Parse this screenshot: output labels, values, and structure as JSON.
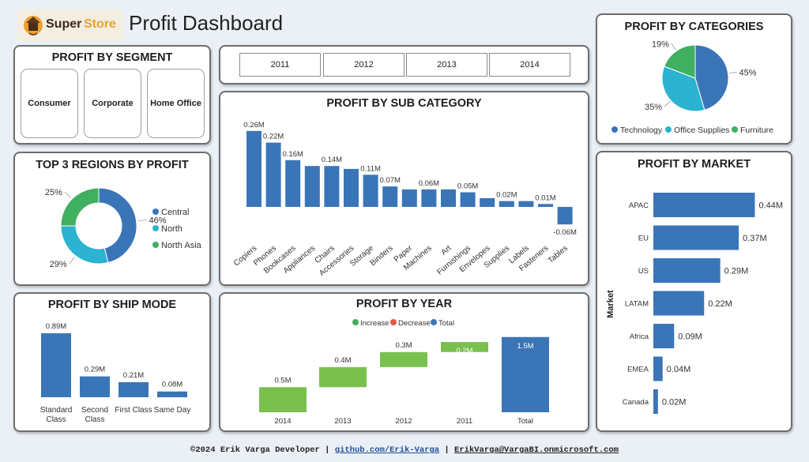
{
  "header": {
    "logo_word1": "Super",
    "logo_word2": "Store",
    "title": "Profit Dashboard"
  },
  "colors": {
    "blue": "#3a75b8",
    "teal": "#2bb3d1",
    "green": "#3faf60",
    "bar_green": "#7ac04e",
    "decrease": "#e8553c",
    "logo_orange": "#f0a030"
  },
  "segment": {
    "title": "PROFIT BY SEGMENT",
    "buttons": [
      "Consumer",
      "Corporate",
      "Home Office"
    ]
  },
  "years": {
    "buttons": [
      "2011",
      "2012",
      "2013",
      "2014"
    ]
  },
  "regions": {
    "title": "TOP 3 REGIONS BY PROFIT",
    "chart_data": {
      "type": "pie",
      "variant": "donut",
      "labels": [
        "Central",
        "North",
        "North Asia"
      ],
      "values": [
        46,
        29,
        25
      ],
      "value_labels": [
        "46%",
        "29%",
        "25%"
      ],
      "legend_placement": "right"
    }
  },
  "categories": {
    "title": "PROFIT BY CATEGORIES",
    "chart_data": {
      "type": "pie",
      "labels": [
        "Technology",
        "Office Supplies",
        "Furniture"
      ],
      "values": [
        45,
        35,
        19
      ],
      "value_labels": [
        "45%",
        "35%",
        "19%"
      ],
      "legend_placement": "bottom"
    }
  },
  "subcategory": {
    "title": "PROFIT BY SUB CATEGORY",
    "chart_data": {
      "type": "bar",
      "categories": [
        "Copiers",
        "Phones",
        "Bookcases",
        "Appliances",
        "Chairs",
        "Accessories",
        "Storage",
        "Binders",
        "Paper",
        "Machines",
        "Art",
        "Furnishings",
        "Envelopes",
        "Supplies",
        "Labels",
        "Fasteners",
        "Tables"
      ],
      "values": [
        0.26,
        0.22,
        0.16,
        0.14,
        0.14,
        0.13,
        0.11,
        0.07,
        0.06,
        0.06,
        0.06,
        0.05,
        0.03,
        0.02,
        0.02,
        0.01,
        -0.06
      ],
      "data_labels": [
        "0.26M",
        "0.22M",
        "0.16M",
        "",
        "0.14M",
        "",
        "0.11M",
        "0.07M",
        "",
        "0.06M",
        "",
        "0.05M",
        "",
        "0.02M",
        "",
        "0.01M",
        "-0.06M"
      ],
      "unit": "M"
    }
  },
  "market": {
    "title": "PROFIT BY MARKET",
    "chart_data": {
      "type": "bar",
      "orientation": "horizontal",
      "categories": [
        "APAC",
        "EU",
        "US",
        "LATAM",
        "Africa",
        "EMEA",
        "Canada"
      ],
      "values": [
        0.44,
        0.37,
        0.29,
        0.22,
        0.09,
        0.04,
        0.02
      ],
      "data_labels": [
        "0.44M",
        "0.37M",
        "0.29M",
        "0.22M",
        "0.09M",
        "0.04M",
        "0.02M"
      ],
      "ylabel": "Market"
    }
  },
  "shipmode": {
    "title": "PROFIT BY SHIP MODE",
    "chart_data": {
      "type": "bar",
      "categories": [
        [
          "Standard",
          "Class"
        ],
        [
          "Second",
          "Class"
        ],
        [
          "First Class"
        ],
        [
          "Same Day"
        ]
      ],
      "values": [
        0.89,
        0.29,
        0.21,
        0.08
      ],
      "data_labels": [
        "0.89M",
        "0.29M",
        "0.21M",
        "0.08M"
      ]
    }
  },
  "year": {
    "title": "PROFIT BY YEAR",
    "chart_data": {
      "type": "bar",
      "variant": "waterfall",
      "legend": [
        "Increase",
        "Decrease",
        "Total"
      ],
      "legend_placement": "top",
      "categories": [
        "2014",
        "2013",
        "2012",
        "2011",
        "Total"
      ],
      "values": [
        0.5,
        0.4,
        0.3,
        0.2,
        1.5
      ],
      "data_labels": [
        "0.5M",
        "0.4M",
        "0.3M",
        "0.2M",
        "1.5M"
      ],
      "kinds": [
        "increase",
        "increase",
        "increase",
        "increase",
        "total"
      ]
    }
  },
  "footer": {
    "credit": "©2024 Erik Varga Developer",
    "sep": "|",
    "github": "github.com/Erik-Varga",
    "email": "ErikVarga@VargaBI.onmicrosoft.com"
  }
}
